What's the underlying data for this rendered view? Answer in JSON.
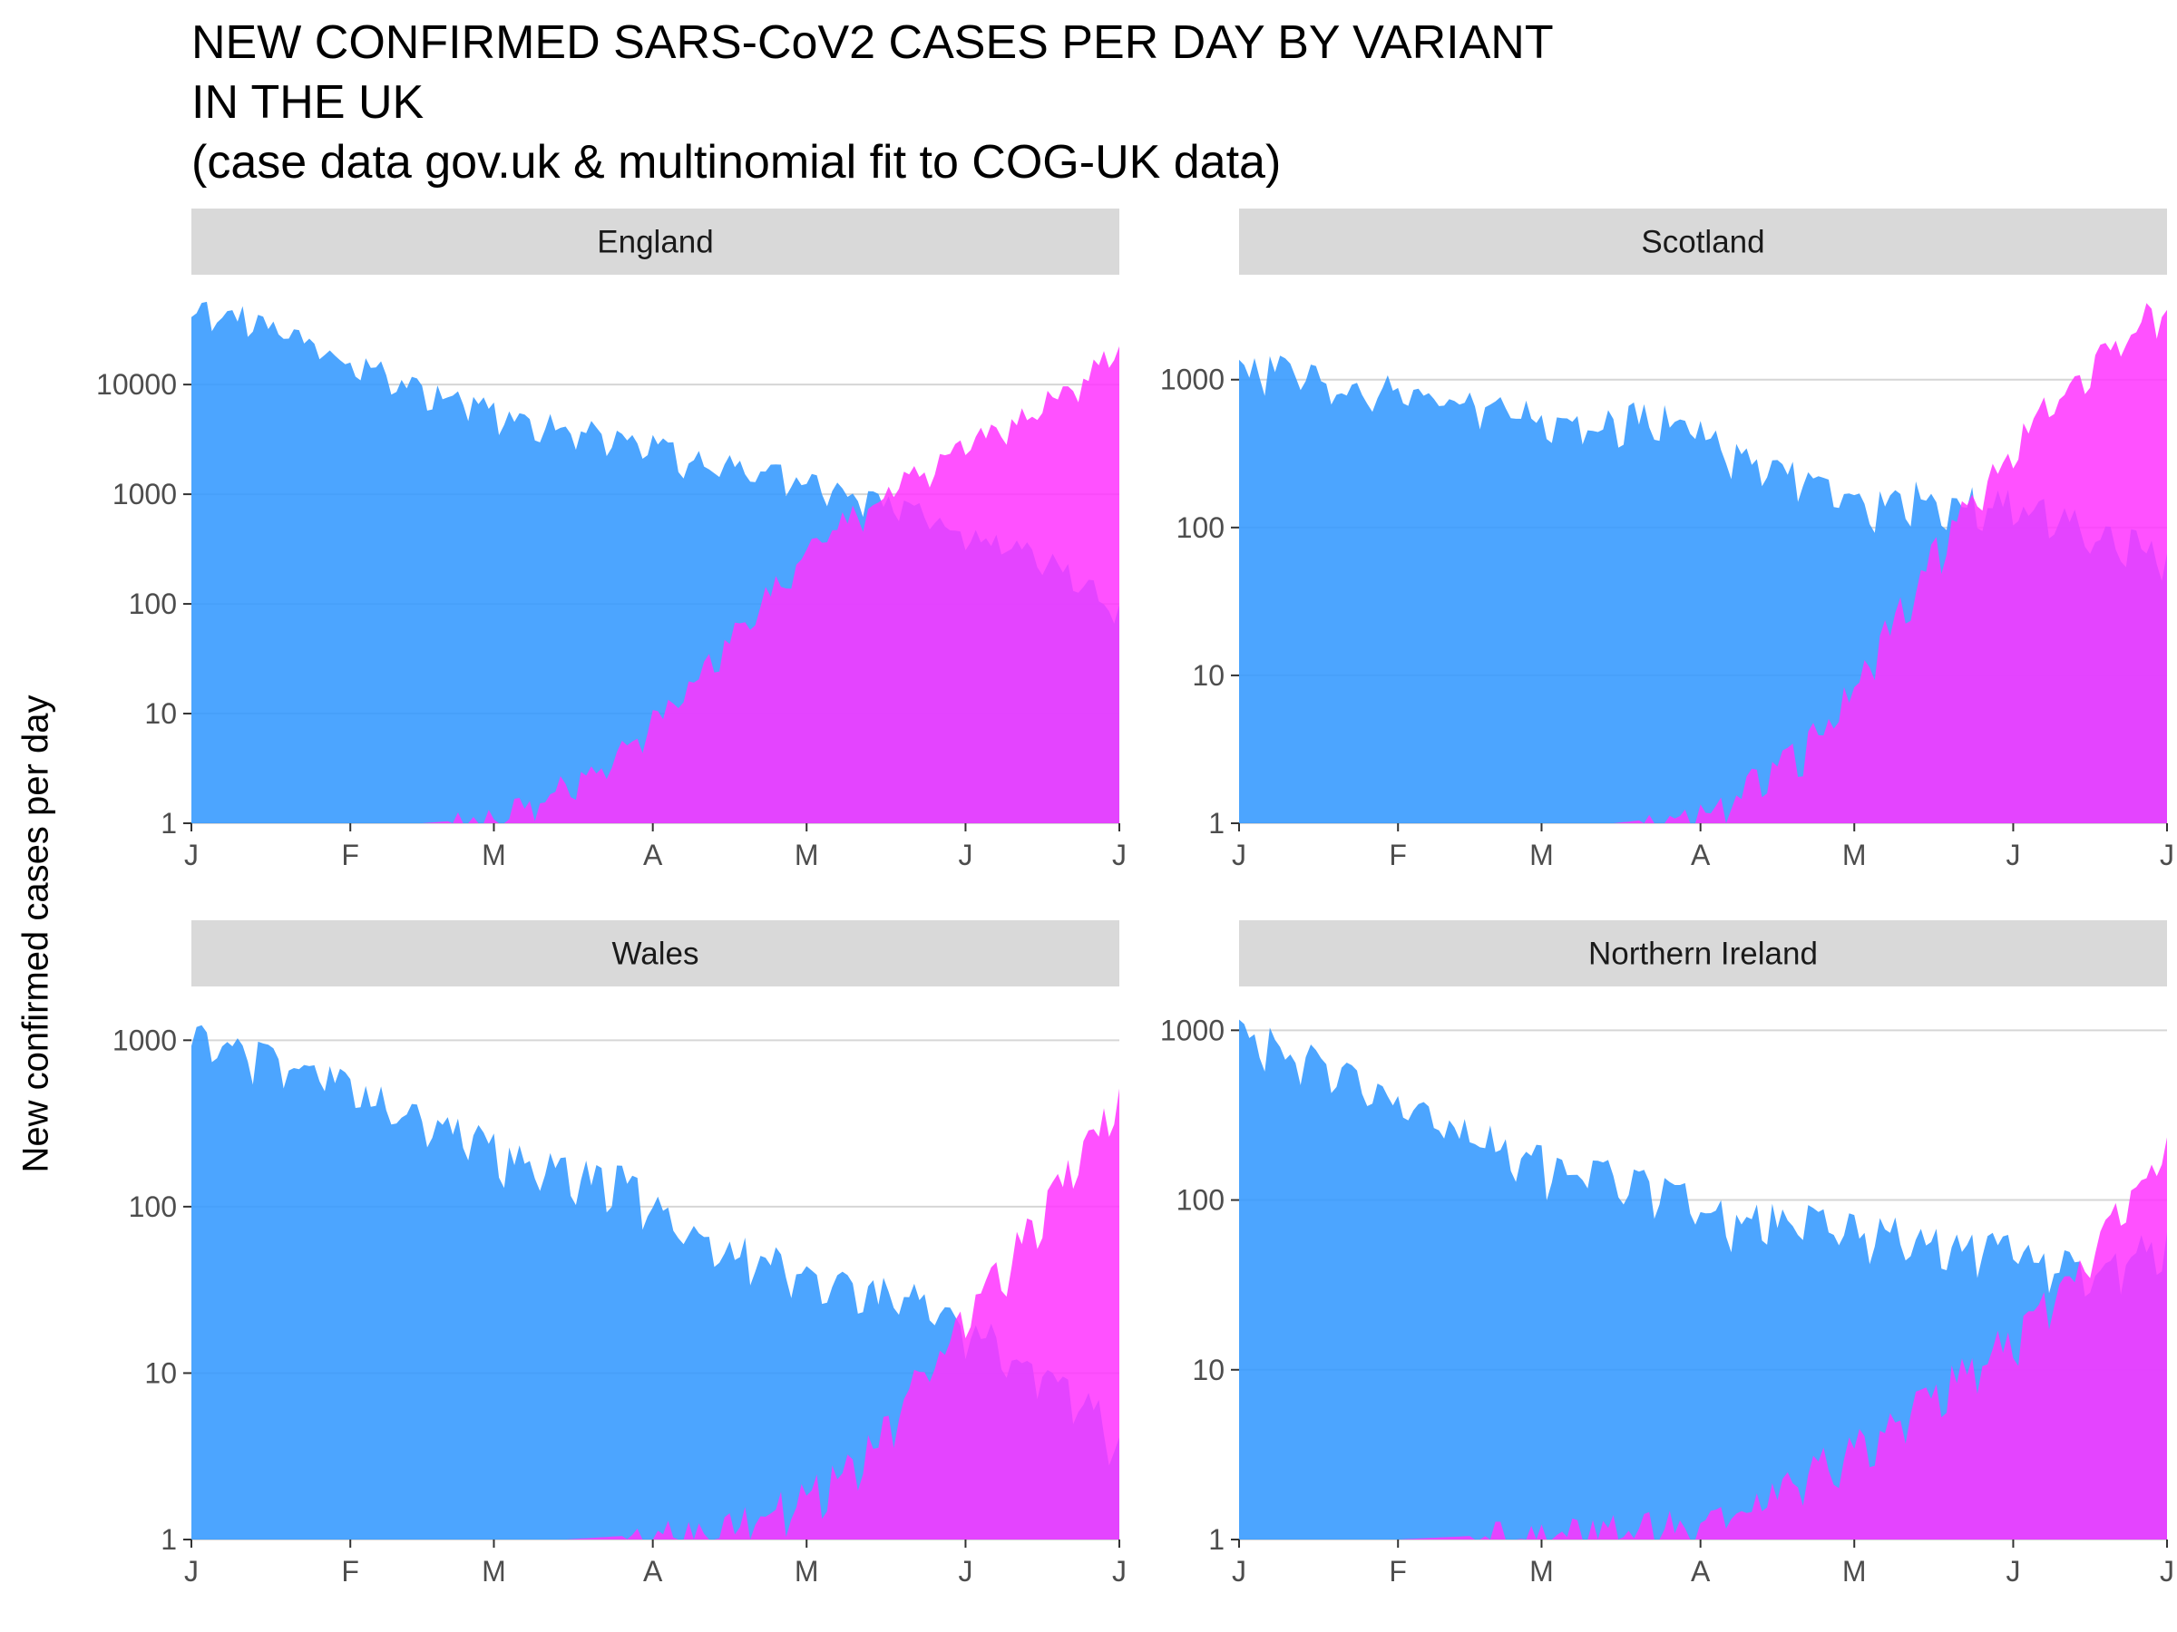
{
  "title": {
    "line1": "NEW CONFIRMED SARS-CoV2 CASES PER DAY BY VARIANT",
    "line2": "IN THE UK",
    "line3": "(case data gov.uk & multinomial fit to COG-UK data)"
  },
  "ylabel": "New confirmed cases per day",
  "colors": {
    "series_1": "#3399ff",
    "series_2": "#ff33ff",
    "overlap": "#c030ff",
    "strip_bg": "#d9d9d9",
    "grid": "#d6d6d6"
  },
  "x_tick_labels": [
    "J",
    "F",
    "M",
    "A",
    "M",
    "J",
    "J"
  ],
  "x_ticks": [
    "2021-01-01",
    "2021-02-01",
    "2021-03-01",
    "2021-04-01",
    "2021-05-01",
    "2021-06-01",
    "2021-07-01"
  ],
  "chart_data": [
    {
      "type": "area",
      "panel": "England",
      "scale": "log10",
      "x_range": [
        "2021-01-01",
        "2021-07-01"
      ],
      "ylim": [
        1,
        60000
      ],
      "y_ticks": [
        1,
        10,
        100,
        1000,
        10000
      ],
      "y_tick_labels": [
        "1",
        "10",
        "100",
        "1000",
        "10000"
      ],
      "series": [
        {
          "x": [
            "2021-01-01",
            "2021-01-08",
            "2021-01-15",
            "2021-01-22",
            "2021-01-29",
            "2021-02-05",
            "2021-02-12",
            "2021-02-19",
            "2021-02-26",
            "2021-03-05",
            "2021-03-12",
            "2021-03-19",
            "2021-03-26",
            "2021-04-02",
            "2021-04-09",
            "2021-04-16",
            "2021-04-23",
            "2021-04-30",
            "2021-05-07",
            "2021-05-14",
            "2021-05-21",
            "2021-05-28",
            "2021-06-04",
            "2021-06-11",
            "2021-06-18",
            "2021-06-25",
            "2021-07-01"
          ],
          "values": [
            50000,
            48000,
            38000,
            28000,
            20000,
            15000,
            11000,
            9000,
            7000,
            5000,
            4500,
            4000,
            3500,
            2900,
            2200,
            1900,
            1700,
            1400,
            1100,
            950,
            800,
            600,
            450,
            350,
            250,
            150,
            100
          ]
        },
        {
          "x": [
            "2021-01-01",
            "2021-02-15",
            "2021-02-26",
            "2021-03-05",
            "2021-03-12",
            "2021-03-19",
            "2021-03-26",
            "2021-04-02",
            "2021-04-09",
            "2021-04-16",
            "2021-04-23",
            "2021-04-30",
            "2021-05-07",
            "2021-05-14",
            "2021-05-21",
            "2021-05-28",
            "2021-06-04",
            "2021-06-11",
            "2021-06-18",
            "2021-06-25",
            "2021-07-01"
          ],
          "values": [
            1,
            1,
            1.1,
            1.4,
            2,
            3,
            5,
            10,
            20,
            50,
            120,
            300,
            550,
            900,
            1500,
            2200,
            3500,
            5000,
            8000,
            13000,
            22000
          ]
        }
      ]
    },
    {
      "type": "area",
      "panel": "Scotland",
      "scale": "log10",
      "x_range": [
        "2021-01-01",
        "2021-07-01"
      ],
      "ylim": [
        1,
        3500
      ],
      "y_ticks": [
        1,
        10,
        100,
        1000
      ],
      "y_tick_labels": [
        "1",
        "10",
        "100",
        "1000"
      ],
      "series": [
        {
          "x": [
            "2021-01-01",
            "2021-01-08",
            "2021-01-15",
            "2021-01-22",
            "2021-01-29",
            "2021-02-05",
            "2021-02-12",
            "2021-02-19",
            "2021-02-26",
            "2021-03-05",
            "2021-03-12",
            "2021-03-19",
            "2021-03-26",
            "2021-04-02",
            "2021-04-09",
            "2021-04-16",
            "2021-04-23",
            "2021-04-30",
            "2021-05-07",
            "2021-05-14",
            "2021-05-21",
            "2021-05-28",
            "2021-06-04",
            "2021-06-11",
            "2021-06-18",
            "2021-06-25",
            "2021-07-01"
          ],
          "values": [
            1200,
            1300,
            1150,
            950,
            900,
            850,
            800,
            750,
            650,
            550,
            520,
            600,
            580,
            450,
            320,
            260,
            210,
            170,
            150,
            180,
            160,
            160,
            140,
            120,
            95,
            80,
            70
          ]
        },
        {
          "x": [
            "2021-01-01",
            "2021-03-15",
            "2021-03-26",
            "2021-04-02",
            "2021-04-09",
            "2021-04-16",
            "2021-04-23",
            "2021-04-30",
            "2021-05-07",
            "2021-05-14",
            "2021-05-21",
            "2021-05-28",
            "2021-06-04",
            "2021-06-11",
            "2021-06-18",
            "2021-06-25",
            "2021-07-01"
          ],
          "values": [
            1,
            1,
            1.1,
            1.3,
            1.8,
            2.5,
            4,
            8,
            20,
            50,
            120,
            250,
            500,
            900,
            1500,
            2600,
            3400
          ]
        }
      ]
    },
    {
      "type": "area",
      "panel": "Wales",
      "scale": "log10",
      "x_range": [
        "2021-01-01",
        "2021-07-01"
      ],
      "ylim": [
        1,
        1500
      ],
      "y_ticks": [
        1,
        10,
        100,
        1000
      ],
      "y_tick_labels": [
        "1",
        "10",
        "100",
        "1000"
      ],
      "series": [
        {
          "x": [
            "2021-01-01",
            "2021-01-08",
            "2021-01-15",
            "2021-01-22",
            "2021-01-29",
            "2021-02-05",
            "2021-02-12",
            "2021-02-19",
            "2021-02-26",
            "2021-03-05",
            "2021-03-12",
            "2021-03-19",
            "2021-03-26",
            "2021-04-02",
            "2021-04-09",
            "2021-04-16",
            "2021-04-23",
            "2021-04-30",
            "2021-05-07",
            "2021-05-14",
            "2021-05-21",
            "2021-05-28",
            "2021-06-04",
            "2021-06-11",
            "2021-06-18",
            "2021-06-25",
            "2021-07-01"
          ],
          "values": [
            1100,
            1000,
            900,
            750,
            600,
            480,
            400,
            320,
            260,
            210,
            190,
            170,
            150,
            100,
            70,
            60,
            50,
            42,
            38,
            32,
            30,
            22,
            18,
            14,
            10,
            7,
            4
          ]
        },
        {
          "x": [
            "2021-01-01",
            "2021-03-15",
            "2021-03-26",
            "2021-04-02",
            "2021-04-09",
            "2021-04-16",
            "2021-04-23",
            "2021-04-30",
            "2021-05-07",
            "2021-05-14",
            "2021-05-21",
            "2021-05-28",
            "2021-06-04",
            "2021-06-11",
            "2021-06-18",
            "2021-06-25",
            "2021-07-01"
          ],
          "values": [
            1,
            1,
            1.05,
            1.1,
            1.2,
            1.3,
            1.5,
            1.8,
            2.5,
            4,
            8,
            15,
            30,
            60,
            120,
            250,
            500
          ]
        }
      ]
    },
    {
      "type": "area",
      "panel": "Northern Ireland",
      "scale": "log10",
      "x_range": [
        "2021-01-01",
        "2021-07-01"
      ],
      "ylim": [
        1,
        1300
      ],
      "y_ticks": [
        1,
        10,
        100,
        1000
      ],
      "y_tick_labels": [
        "1",
        "10",
        "100",
        "1000"
      ],
      "series": [
        {
          "x": [
            "2021-01-01",
            "2021-01-08",
            "2021-01-15",
            "2021-01-22",
            "2021-01-29",
            "2021-02-05",
            "2021-02-12",
            "2021-02-19",
            "2021-02-26",
            "2021-03-05",
            "2021-03-12",
            "2021-03-19",
            "2021-03-26",
            "2021-04-02",
            "2021-04-09",
            "2021-04-16",
            "2021-04-23",
            "2021-04-30",
            "2021-05-07",
            "2021-05-14",
            "2021-05-21",
            "2021-05-28",
            "2021-06-04",
            "2021-06-11",
            "2021-06-18",
            "2021-06-25",
            "2021-07-01"
          ],
          "values": [
            1000,
            900,
            700,
            550,
            400,
            330,
            280,
            230,
            190,
            160,
            150,
            130,
            120,
            90,
            80,
            85,
            80,
            75,
            70,
            65,
            60,
            55,
            50,
            45,
            40,
            55,
            60
          ]
        },
        {
          "x": [
            "2021-01-01",
            "2021-02-01",
            "2021-03-01",
            "2021-03-15",
            "2021-03-26",
            "2021-04-02",
            "2021-04-09",
            "2021-04-16",
            "2021-04-23",
            "2021-04-30",
            "2021-05-07",
            "2021-05-14",
            "2021-05-21",
            "2021-05-28",
            "2021-06-04",
            "2021-06-11",
            "2021-06-18",
            "2021-06-25",
            "2021-07-01"
          ],
          "values": [
            1,
            1,
            1.1,
            1.2,
            1.3,
            1.4,
            1.6,
            2,
            2.8,
            3.5,
            5,
            7,
            10,
            14,
            20,
            35,
            60,
            120,
            250
          ]
        }
      ]
    }
  ]
}
